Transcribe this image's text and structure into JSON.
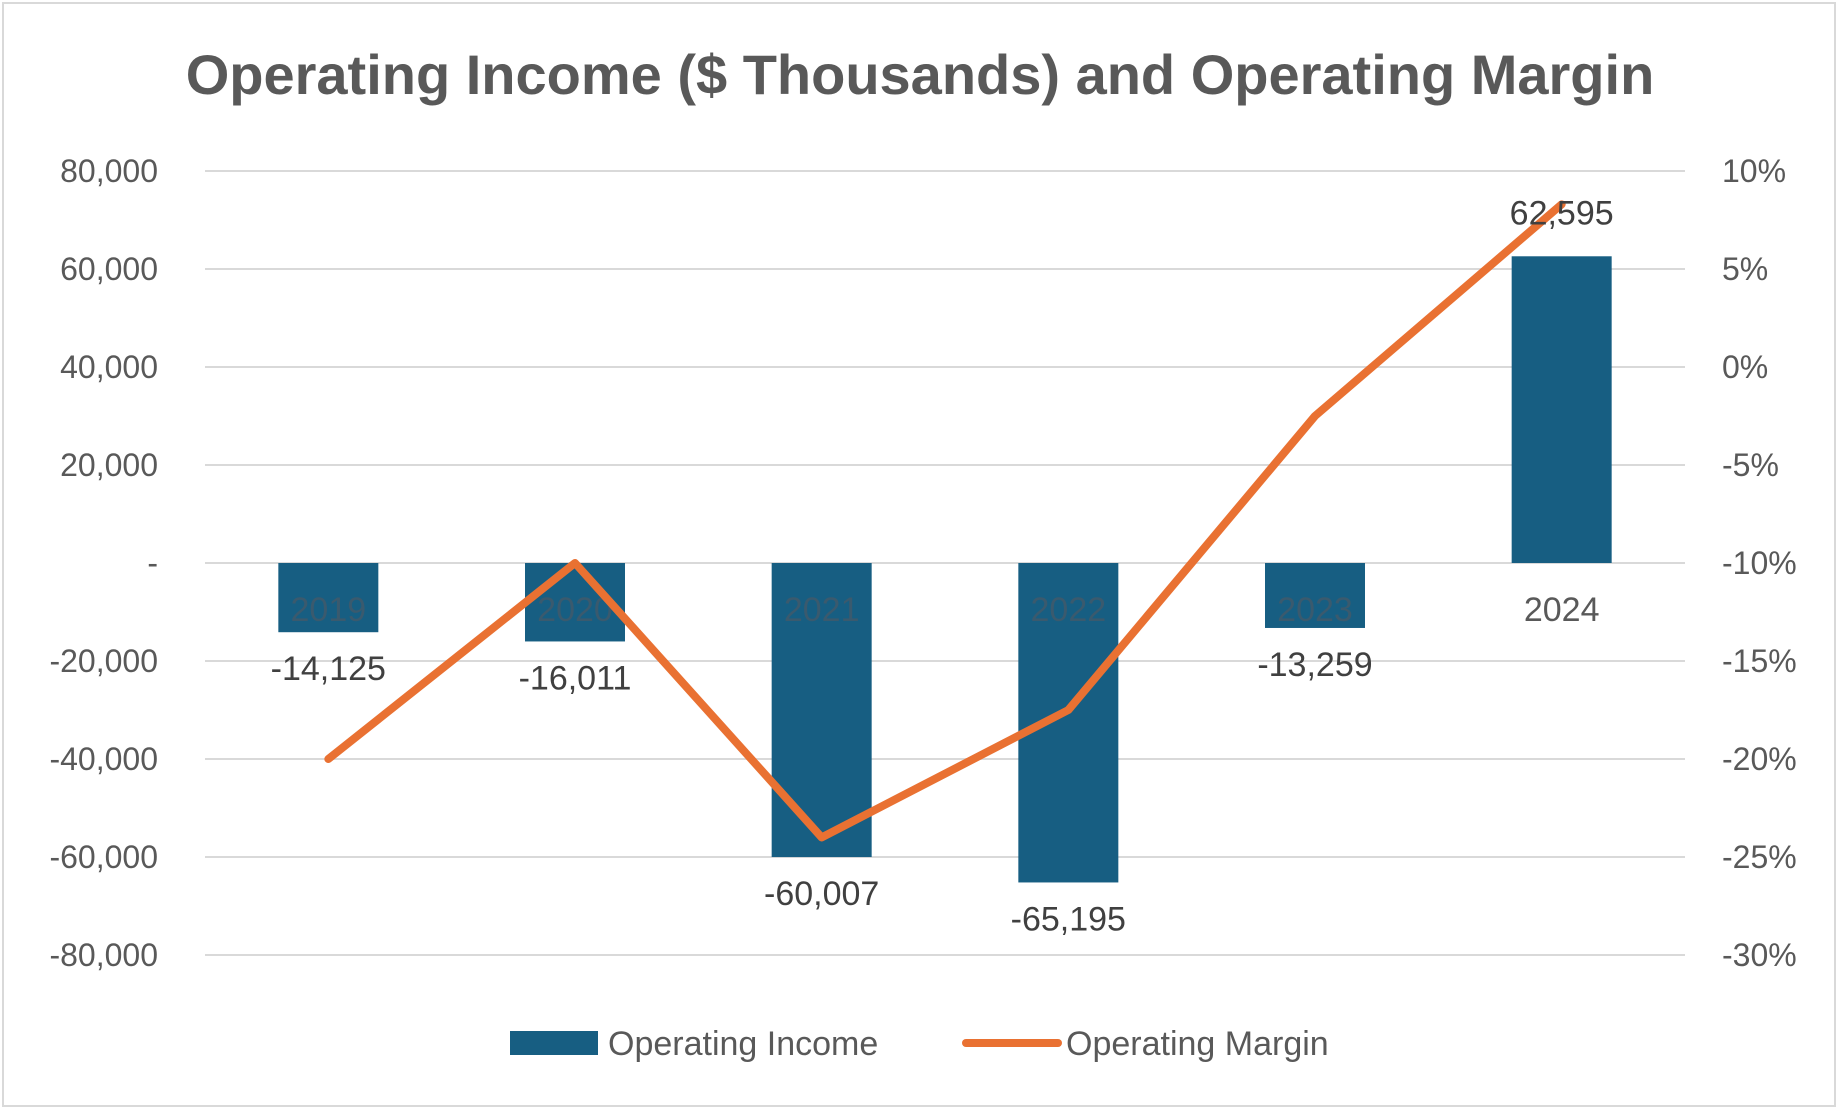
{
  "chart_data": {
    "type": "bar",
    "title": "Operating Income ($ Thousands) and Operating Margin",
    "categories": [
      "2019",
      "2020",
      "2021",
      "2022",
      "2023",
      "2024"
    ],
    "series": [
      {
        "name": "Operating Income",
        "type": "bar",
        "axis": "left",
        "color": "#175E82",
        "values": [
          -14125,
          -16011,
          -60007,
          -65195,
          -13259,
          62595
        ],
        "data_labels": [
          "-14,125",
          "-16,011",
          "-60,007",
          "-65,195",
          "-13,259",
          "62,595"
        ]
      },
      {
        "name": "Operating Margin",
        "type": "line",
        "axis": "right",
        "color": "#E97132",
        "values": [
          -0.2,
          -0.1,
          -0.24,
          -0.175,
          -0.025,
          0.083
        ]
      }
    ],
    "y_left": {
      "range": [
        -80000,
        80000
      ],
      "ticks": [
        80000,
        60000,
        40000,
        20000,
        0,
        -20000,
        -40000,
        -60000,
        -80000
      ],
      "tick_labels": [
        "80,000",
        "60,000",
        "40,000",
        "20,000",
        "-",
        "-20,000",
        "-40,000",
        "-60,000",
        "-80,000"
      ]
    },
    "y_right": {
      "range": [
        -0.3,
        0.1
      ],
      "ticks": [
        0.1,
        0.05,
        0.0,
        -0.05,
        -0.1,
        -0.15,
        -0.2,
        -0.25,
        -0.3
      ],
      "tick_labels": [
        "10%",
        "5%",
        "0%",
        "-5%",
        "-10%",
        "-15%",
        "-20%",
        "-25%",
        "-30%"
      ]
    },
    "grid": true,
    "legend_position": "bottom",
    "colors": {
      "gridline": "#D9D9D9",
      "axis_text": "#595959",
      "category_on_bar": "#3a5a6e",
      "category_off_bar": "#595959"
    }
  }
}
